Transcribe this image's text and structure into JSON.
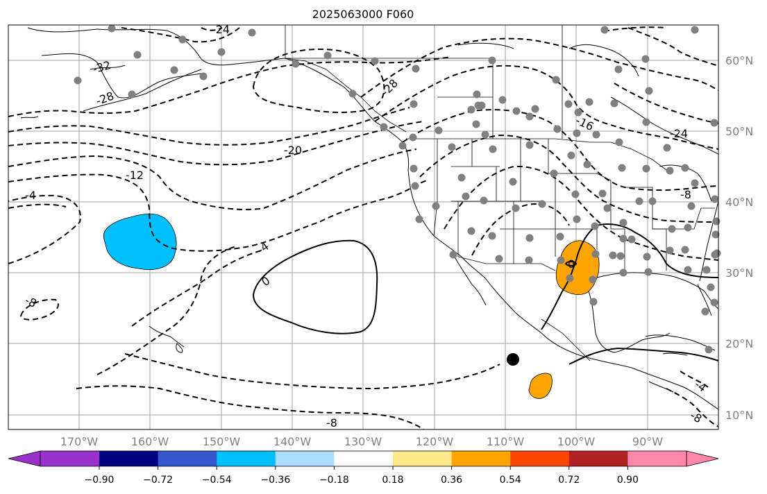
{
  "title": "2025063000 F060",
  "latitude_labels": [
    "60°N",
    "50°N",
    "40°N",
    "30°N",
    "20°N",
    "10°N"
  ],
  "longitude_labels": [
    "170°W",
    "160°W",
    "150°W",
    "140°W",
    "130°W",
    "120°W",
    "110°W",
    "100°W",
    "90°W"
  ],
  "contour_labels": {
    "c_m24": "-24",
    "c_m28a": "-28",
    "c_m28b": "-28",
    "c_m32": "-32",
    "c_m20": "-20",
    "c_m12": "-12",
    "c_m16": "-16",
    "c_m24b": "-24",
    "c_m4a": "-4",
    "c_m4b": "-4",
    "c_m8a": "-8",
    "c_m8b": "-8",
    "c_m8c": "-8",
    "c_m8d": "-8",
    "c_m4c": "-4",
    "c_0a": "0",
    "c_0b": "0"
  },
  "colorbar": {
    "ticks": [
      "−0.90",
      "−0.72",
      "−0.54",
      "−0.36",
      "−0.18",
      "0.18",
      "0.36",
      "0.54",
      "0.72",
      "0.90"
    ],
    "under_color": "#9932cc",
    "over_color": "#ff88aa",
    "colors": [
      "#000080",
      "#3455cc",
      "#00bfff",
      "#aaddff",
      "#ffffff",
      "#ffe88a",
      "#ffa500",
      "#ff4500",
      "#b22222"
    ]
  },
  "shaded_regions": [
    {
      "name": "negative-anomaly-region",
      "color": "#00bfff"
    },
    {
      "name": "positive-anomaly-region-texas",
      "color": "#ffa500"
    },
    {
      "name": "positive-anomaly-region-pacific",
      "color": "#ffa500"
    }
  ],
  "colors": {
    "station": "#808080",
    "grid": "#a0a0a0"
  }
}
